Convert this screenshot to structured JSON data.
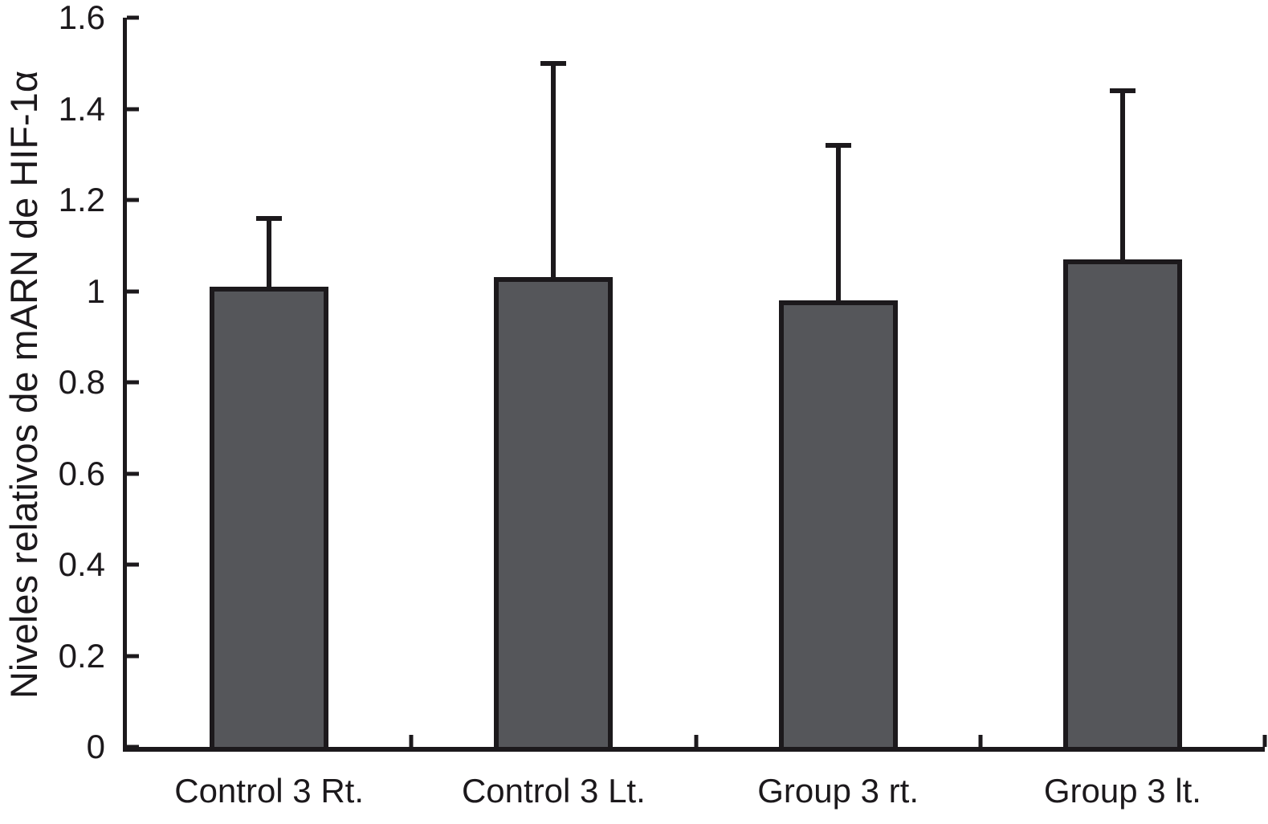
{
  "chart_data": {
    "type": "bar",
    "title": "",
    "xlabel": "",
    "ylabel": "Niveles relativos de mARN de HIF-1α",
    "categories": [
      "Control 3 Rt.",
      "Control 3 Lt.",
      "Group 3 rt.",
      "Group 3 lt."
    ],
    "values": [
      1.01,
      1.03,
      0.98,
      1.07
    ],
    "errors_upper": [
      0.15,
      0.47,
      0.34,
      0.37
    ],
    "error_bars": "upper-only",
    "ylim": [
      0,
      1.6
    ],
    "ytick_values": [
      0,
      0.2,
      0.4,
      0.6,
      0.8,
      1,
      1.2,
      1.4,
      1.6
    ],
    "ytick_labels": [
      "0",
      "0.2",
      "0.4",
      "0.6",
      "0.8",
      "1",
      "1.2",
      "1.4",
      "1.6"
    ],
    "grid": false,
    "legend": null,
    "colors": {
      "bar_fill": "#55565a",
      "bar_border": "#1c191c",
      "axis": "#1c191c",
      "text": "#1c191c",
      "background": "#ffffff"
    }
  }
}
